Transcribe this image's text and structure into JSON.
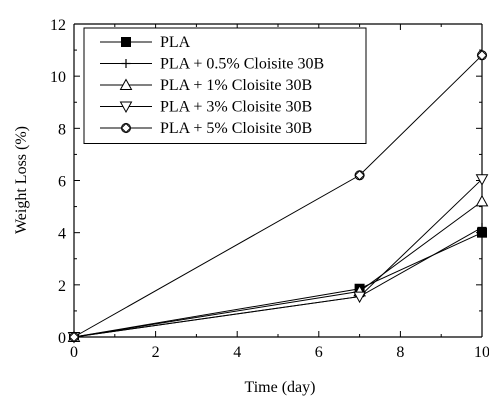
{
  "chart_data": {
    "type": "line",
    "title": "",
    "xlabel": "Time (day)",
    "ylabel": "Weight Loss (%)",
    "xlim": [
      0,
      10
    ],
    "ylim": [
      0,
      12
    ],
    "xticks": [
      0,
      2,
      4,
      6,
      8,
      10
    ],
    "yticks": [
      0,
      2,
      4,
      6,
      8,
      10,
      12
    ],
    "grid": false,
    "legend_position": "top-left",
    "x": [
      0,
      7,
      10
    ],
    "series": [
      {
        "name": "PLA",
        "marker": "filled-square",
        "values": [
          0,
          1.85,
          4.0
        ]
      },
      {
        "name": "PLA + 0.5% Cloisite 30B",
        "marker": "plus",
        "values": [
          0,
          1.55,
          4.2
        ]
      },
      {
        "name": "PLA + 1% Cloisite 30B",
        "marker": "triangle-up",
        "values": [
          0,
          1.75,
          5.2
        ]
      },
      {
        "name": "PLA + 3% Cloisite 30B",
        "marker": "triangle-down",
        "values": [
          0,
          1.55,
          6.05
        ]
      },
      {
        "name": "PLA + 5% Cloisite 30B",
        "marker": "circled-diamond",
        "values": [
          0,
          6.2,
          10.8
        ]
      }
    ]
  }
}
